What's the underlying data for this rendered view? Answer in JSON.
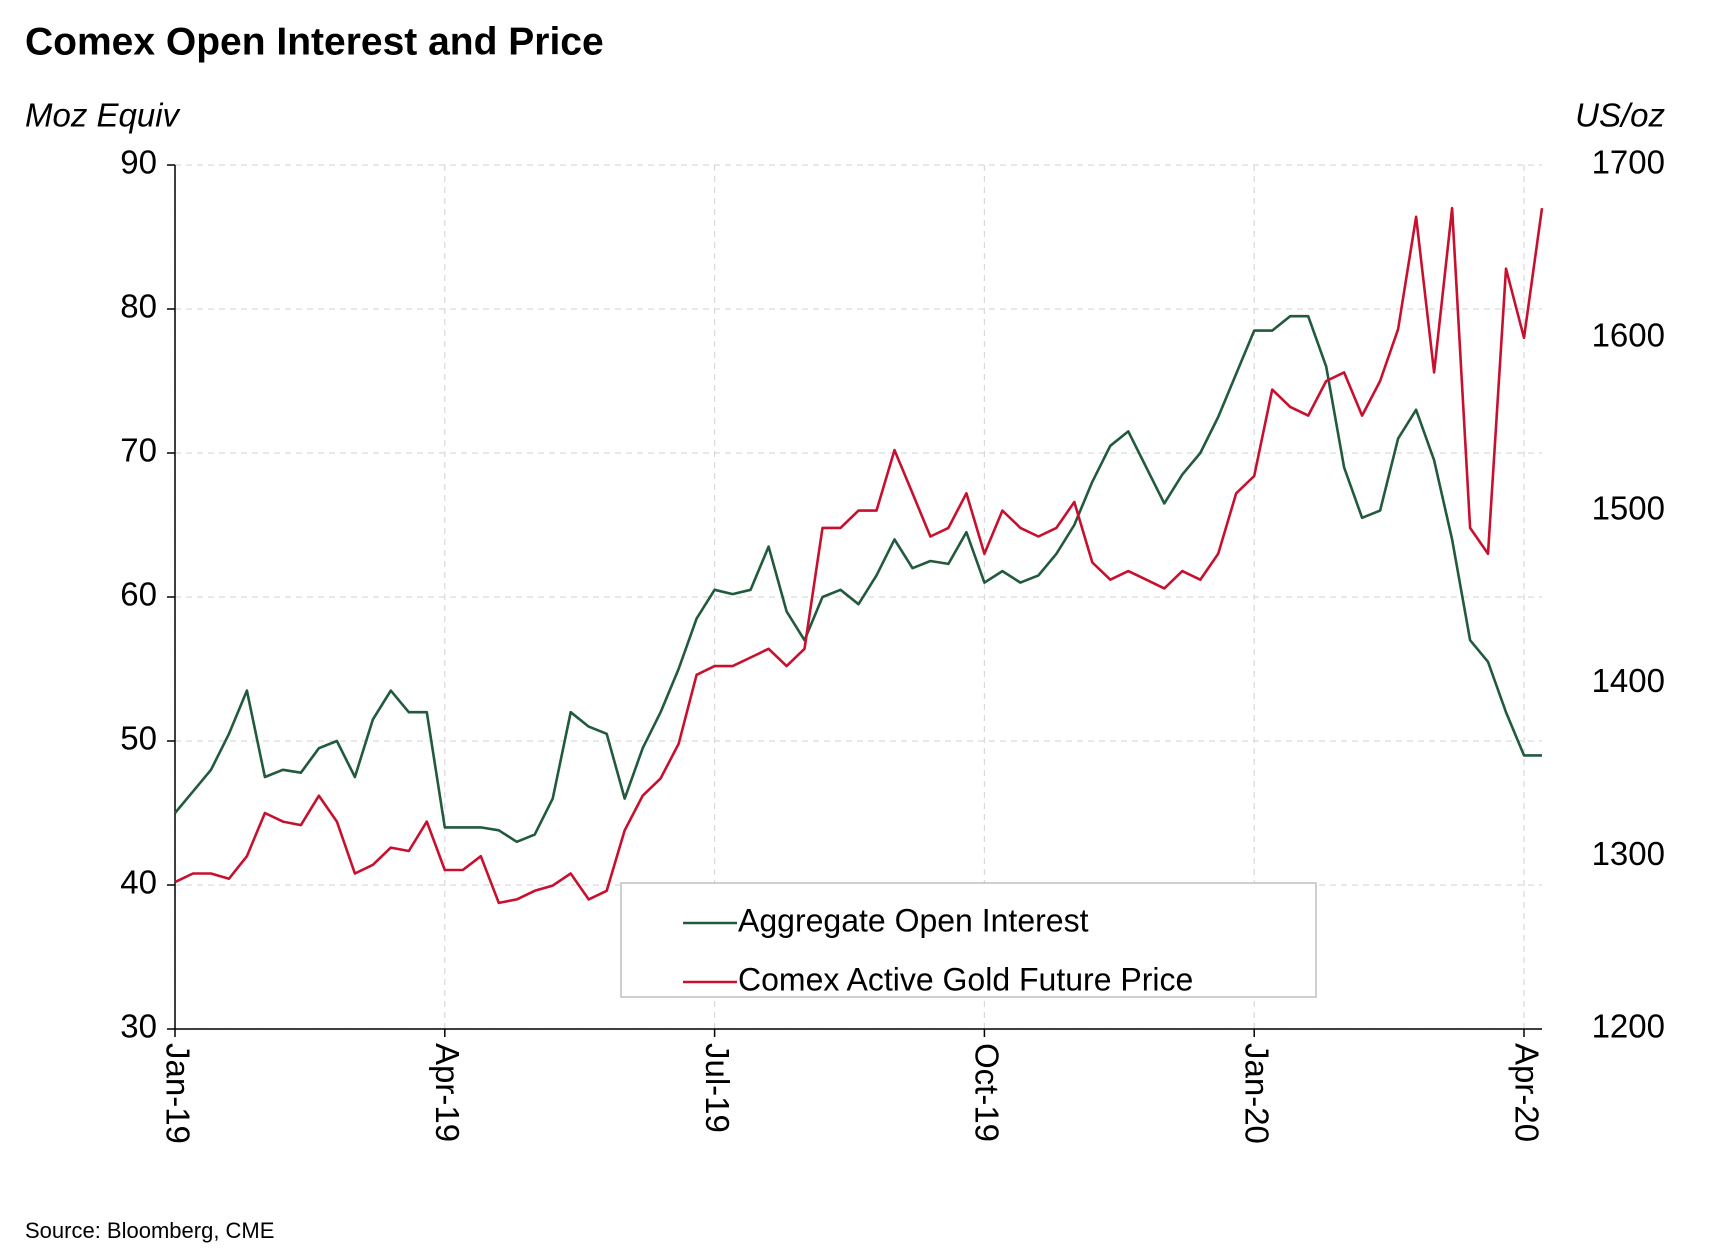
{
  "chart_data": {
    "type": "line",
    "title": "Comex Open Interest and Price",
    "y_label": "Moz Equiv",
    "y2_label": "US/oz",
    "source": "Source:  Bloomberg,  CME",
    "categories": [
      "Jan-19",
      null,
      null,
      null,
      null,
      null,
      null,
      null,
      null,
      null,
      null,
      null,
      null,
      null,
      null,
      "Apr-19",
      null,
      null,
      null,
      null,
      null,
      null,
      null,
      null,
      null,
      null,
      null,
      null,
      null,
      null,
      "Jul-19",
      null,
      null,
      null,
      null,
      null,
      null,
      null,
      null,
      null,
      null,
      null,
      null,
      null,
      null,
      "Oct-19",
      null,
      null,
      null,
      null,
      null,
      null,
      null,
      null,
      null,
      null,
      null,
      null,
      null,
      null,
      "Jan-20",
      null,
      null,
      null,
      null,
      null,
      null,
      null,
      null,
      null,
      null,
      null,
      null,
      null,
      null,
      "Apr-20",
      null
    ],
    "series": [
      {
        "name": "Aggregate Open Interest",
        "color": "#215a3c",
        "axis": "y",
        "values": [
          45,
          46.5,
          48,
          50.5,
          53.5,
          47.5,
          48,
          47.8,
          49.5,
          50,
          47.5,
          51.5,
          53.5,
          52,
          52,
          44,
          44,
          44,
          43.8,
          43,
          43.5,
          46,
          52,
          51,
          50.5,
          46,
          49.5,
          52,
          55,
          58.5,
          60.5,
          60.2,
          60.5,
          63.5,
          59,
          57,
          60,
          60.5,
          59.5,
          61.5,
          64,
          62,
          62.5,
          62.3,
          64.5,
          61,
          61.8,
          61,
          61.5,
          63,
          65,
          68,
          70.5,
          71.5,
          69,
          66.5,
          68.5,
          70,
          72.5,
          75.5,
          78.5,
          78.5,
          79.5,
          79.5,
          76,
          69,
          65.5,
          66,
          71,
          73,
          69.5,
          64,
          57,
          55.5,
          52,
          49,
          49
        ]
      },
      {
        "name": "Comex Active Gold  Future Price",
        "color": "#c8102e",
        "axis": "y2",
        "values": [
          1285,
          1290,
          1290,
          1287,
          1300,
          1325,
          1320,
          1318,
          1335,
          1320,
          1290,
          1295,
          1305,
          1303,
          1320,
          1292,
          1292,
          1300,
          1273,
          1275,
          1280,
          1283,
          1290,
          1275,
          1280,
          1315,
          1335,
          1345,
          1365,
          1405,
          1410,
          1410,
          1415,
          1420,
          1410,
          1420,
          1490,
          1490,
          1500,
          1500,
          1535,
          1510,
          1485,
          1490,
          1510,
          1475,
          1500,
          1490,
          1485,
          1490,
          1505,
          1470,
          1460,
          1465,
          1460,
          1455,
          1465,
          1460,
          1475,
          1510,
          1520,
          1570,
          1560,
          1555,
          1575,
          1580,
          1555,
          1575,
          1605,
          1670,
          1580,
          1675,
          1490,
          1475,
          1640,
          1600,
          1675
        ]
      }
    ],
    "ylim": [
      30,
      90
    ],
    "yticks": [
      30,
      40,
      50,
      60,
      70,
      80,
      90
    ],
    "y2lim": [
      1200,
      1700
    ],
    "y2ticks": [
      1200,
      1300,
      1400,
      1500,
      1600,
      1700
    ],
    "grid": true
  }
}
